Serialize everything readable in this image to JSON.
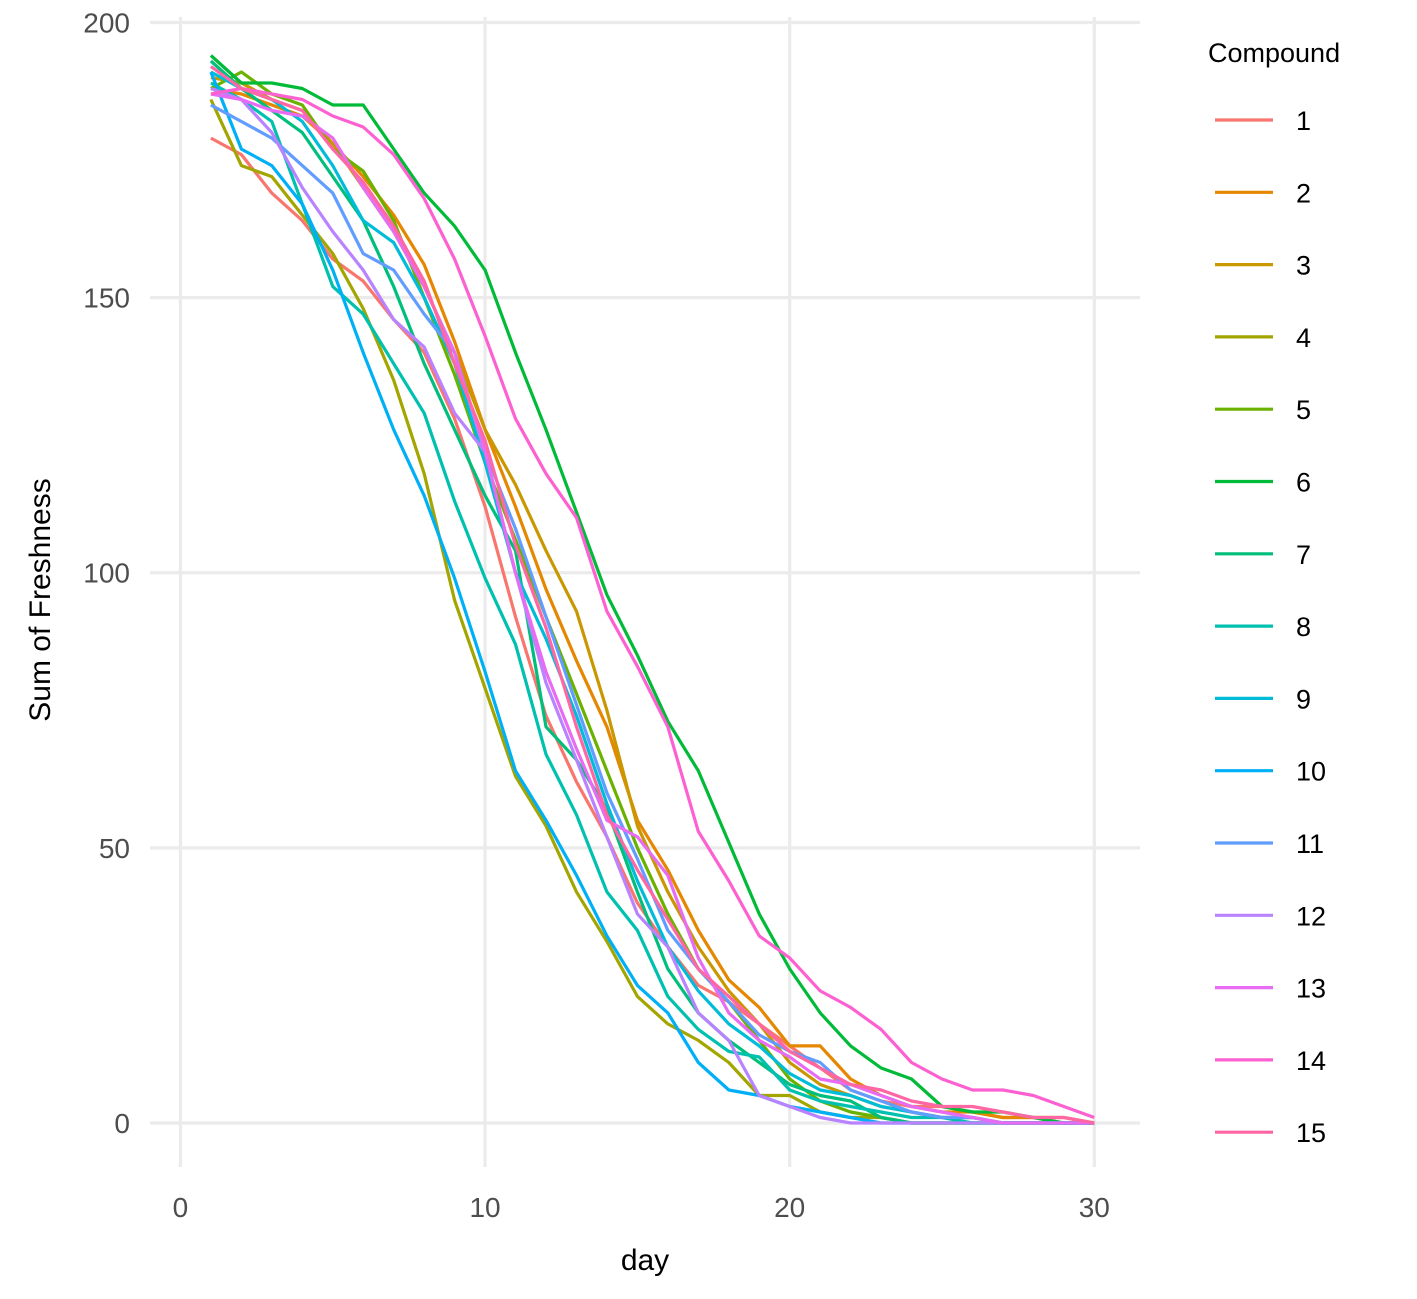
{
  "chart_data": {
    "type": "line",
    "xlabel": "day",
    "ylabel": "Sum of Freshness",
    "xlim": [
      -1,
      31.5
    ],
    "ylim": [
      -8,
      201
    ],
    "xticks": [
      0,
      10,
      20,
      30
    ],
    "yticks": [
      0,
      50,
      100,
      150,
      200
    ],
    "x_tick_labels": [
      "0",
      "10",
      "20",
      "30"
    ],
    "y_tick_labels": [
      "0",
      "50",
      "100",
      "150",
      "200"
    ],
    "grid": true,
    "legend_title": "Compound",
    "legend_position": "right",
    "x": [
      1,
      2,
      3,
      4,
      5,
      6,
      7,
      8,
      9,
      10,
      11,
      12,
      13,
      14,
      15,
      16,
      17,
      18,
      19,
      20,
      21,
      22,
      23,
      24,
      25,
      26,
      27,
      28,
      29,
      30
    ],
    "series": [
      {
        "name": "1",
        "color": "#F8766D",
        "values": [
          179,
          176,
          169,
          164,
          157,
          153,
          146,
          140,
          128,
          112,
          92,
          74,
          62,
          52,
          40,
          32,
          25,
          22,
          18,
          14,
          10,
          6,
          4,
          3,
          3,
          2,
          1,
          1,
          0,
          0
        ]
      },
      {
        "name": "2",
        "color": "#E58700",
        "values": [
          188,
          187,
          185,
          183,
          178,
          172,
          165,
          156,
          142,
          126,
          112,
          97,
          84,
          72,
          55,
          46,
          35,
          26,
          21,
          14,
          14,
          8,
          5,
          3,
          2,
          2,
          1,
          1,
          1,
          0
        ]
      },
      {
        "name": "3",
        "color": "#C99800",
        "values": [
          190,
          189,
          186,
          184,
          178,
          170,
          162,
          152,
          140,
          126,
          116,
          104,
          93,
          75,
          54,
          42,
          32,
          24,
          18,
          11,
          7,
          5,
          3,
          2,
          1,
          1,
          0,
          0,
          0,
          0
        ]
      },
      {
        "name": "4",
        "color": "#A3A500",
        "values": [
          186,
          174,
          172,
          165,
          158,
          148,
          135,
          118,
          95,
          79,
          63,
          54,
          42,
          33,
          23,
          18,
          15,
          11,
          5,
          5,
          2,
          1,
          1,
          0,
          0,
          0,
          0,
          0,
          0,
          0
        ]
      },
      {
        "name": "5",
        "color": "#6BB100",
        "values": [
          188,
          191,
          187,
          185,
          177,
          173,
          164,
          150,
          136,
          120,
          106,
          92,
          78,
          64,
          50,
          38,
          28,
          22,
          15,
          8,
          4,
          2,
          1,
          0,
          0,
          0,
          0,
          0,
          0,
          0
        ]
      },
      {
        "name": "6",
        "color": "#00BA38",
        "values": [
          194,
          189,
          189,
          188,
          185,
          185,
          177,
          169,
          163,
          155,
          140,
          126,
          111,
          96,
          85,
          73,
          64,
          51,
          38,
          28,
          20,
          14,
          10,
          8,
          3,
          2,
          2,
          1,
          0,
          0
        ]
      },
      {
        "name": "7",
        "color": "#00BF7D",
        "values": [
          193,
          188,
          184,
          180,
          172,
          164,
          152,
          138,
          126,
          114,
          104,
          72,
          66,
          57,
          42,
          28,
          20,
          15,
          11,
          7,
          5,
          4,
          1,
          0,
          0,
          0,
          0,
          0,
          0,
          0
        ]
      },
      {
        "name": "8",
        "color": "#00C0AF",
        "values": [
          189,
          186,
          182,
          167,
          152,
          147,
          138,
          129,
          113,
          99,
          87,
          67,
          56,
          42,
          35,
          23,
          17,
          13,
          12,
          6,
          4,
          3,
          2,
          1,
          1,
          0,
          0,
          0,
          0,
          0
        ]
      },
      {
        "name": "9",
        "color": "#00BCD8",
        "values": [
          191,
          188,
          186,
          182,
          174,
          164,
          160,
          150,
          138,
          120,
          100,
          88,
          74,
          58,
          44,
          32,
          24,
          18,
          14,
          9,
          6,
          5,
          3,
          2,
          1,
          1,
          0,
          0,
          0,
          0
        ]
      },
      {
        "name": "10",
        "color": "#00B0F6",
        "values": [
          191,
          177,
          174,
          167,
          155,
          140,
          126,
          114,
          99,
          82,
          64,
          55,
          45,
          34,
          25,
          20,
          11,
          6,
          5,
          3,
          2,
          1,
          0,
          0,
          0,
          0,
          0,
          0,
          0,
          0
        ]
      },
      {
        "name": "11",
        "color": "#619CFF",
        "values": [
          185,
          182,
          179,
          174,
          169,
          158,
          155,
          147,
          140,
          122,
          108,
          92,
          76,
          60,
          48,
          35,
          28,
          22,
          16,
          13,
          11,
          6,
          4,
          2,
          1,
          1,
          0,
          0,
          0,
          0
        ]
      },
      {
        "name": "12",
        "color": "#B983FF",
        "values": [
          188,
          186,
          180,
          170,
          162,
          155,
          146,
          141,
          129,
          122,
          100,
          80,
          66,
          52,
          38,
          32,
          20,
          15,
          5,
          3,
          1,
          0,
          0,
          0,
          0,
          0,
          0,
          0,
          0,
          0
        ]
      },
      {
        "name": "13",
        "color": "#E76BF3",
        "values": [
          187,
          186,
          184,
          183,
          179,
          170,
          162,
          152,
          140,
          122,
          100,
          82,
          68,
          55,
          52,
          45,
          30,
          20,
          15,
          12,
          8,
          7,
          5,
          3,
          2,
          1,
          0,
          0,
          0,
          0
        ]
      },
      {
        "name": "14",
        "color": "#FD61D1",
        "values": [
          187,
          188,
          187,
          186,
          183,
          181,
          176,
          168,
          157,
          143,
          128,
          118,
          110,
          93,
          83,
          72,
          53,
          44,
          34,
          30,
          24,
          21,
          17,
          11,
          8,
          6,
          6,
          5,
          3,
          1
        ]
      },
      {
        "name": "15",
        "color": "#FF67A4",
        "values": [
          192,
          188,
          186,
          184,
          177,
          171,
          163,
          153,
          138,
          124,
          105,
          90,
          72,
          56,
          46,
          37,
          28,
          23,
          18,
          13,
          10,
          7,
          6,
          4,
          3,
          3,
          2,
          1,
          1,
          0
        ]
      }
    ]
  }
}
